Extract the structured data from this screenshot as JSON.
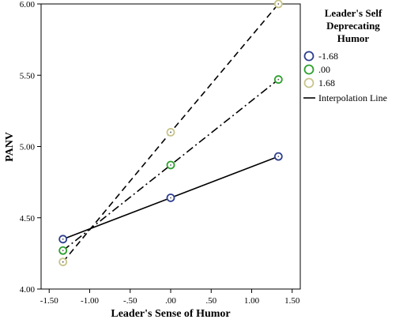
{
  "chart_data": {
    "type": "scatter",
    "xlabel": "Leader's Sense of Humor",
    "ylabel": "PANV",
    "xlim": [
      -1.6,
      1.6
    ],
    "ylim": [
      4.0,
      6.0
    ],
    "x_ticks": [
      "-1.50",
      "-1.00",
      "-.50",
      ".00",
      ".50",
      "1.00",
      "1.50"
    ],
    "y_ticks": [
      "4.00",
      "4.50",
      "5.00",
      "5.50",
      "6.00"
    ],
    "legend": {
      "title": [
        "Leader's Self",
        "Deprecating",
        "Humor"
      ],
      "placement": "right",
      "line_label": "Interpolation Line"
    },
    "series": [
      {
        "name": "-1.68",
        "color": "#2e3f8f",
        "line_style": "solid",
        "x": [
          -1.33,
          0.0,
          1.33
        ],
        "y": [
          4.35,
          4.64,
          4.93
        ]
      },
      {
        "name": ".00",
        "color": "#2ca02c",
        "line_style": "dash-dot",
        "x": [
          -1.33,
          0.0,
          1.33
        ],
        "y": [
          4.27,
          4.87,
          5.47
        ]
      },
      {
        "name": "1.68",
        "color": "#c8c48a",
        "line_style": "dashed",
        "x": [
          -1.33,
          0.0,
          1.33
        ],
        "y": [
          4.19,
          5.1,
          6.0
        ]
      }
    ]
  }
}
